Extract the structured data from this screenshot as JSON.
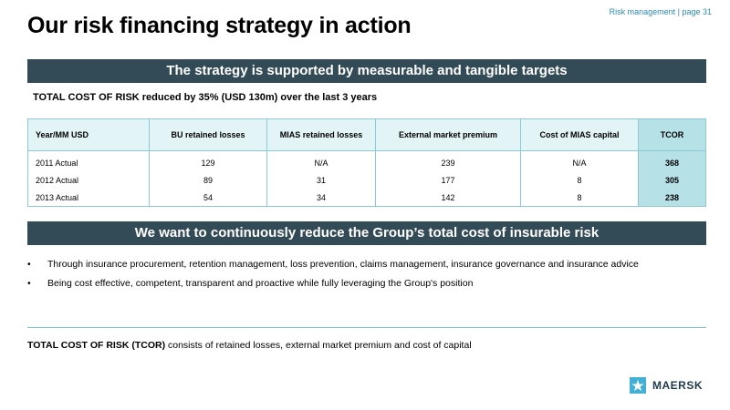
{
  "header": {
    "page_label": "Risk management | page 31",
    "title": "Our risk financing strategy in action"
  },
  "section1": {
    "banner": "The strategy is supported by measurable and tangible targets",
    "subhead": "TOTAL COST OF RISK reduced by 35% (USD 130m) over the last 3 years"
  },
  "table": {
    "headers": [
      "Year/MM USD",
      "BU retained losses",
      "MIAS retained losses",
      "External market premium",
      "Cost of  MIAS capital",
      "TCOR"
    ],
    "rows": [
      [
        "2011 Actual",
        "129",
        "N/A",
        "239",
        "N/A",
        "368"
      ],
      [
        "2012 Actual",
        "89",
        "31",
        "177",
        "8",
        "305"
      ],
      [
        "2013 Actual",
        "54",
        "34",
        "142",
        "8",
        "238"
      ]
    ]
  },
  "section2": {
    "banner": "We want to continuously reduce the Group’s total cost of insurable risk",
    "bullet_glyph": "•",
    "bullets": [
      "Through insurance procurement, retention management, loss prevention, claims management, insurance governance and insurance advice",
      "Being cost effective, competent, transparent and proactive while fully leveraging the Group's position"
    ]
  },
  "footnote": {
    "bold": "TOTAL COST OF RISK (TCOR)",
    "text": " consists of retained losses, external market premium and cost of capital"
  },
  "logo": {
    "text": "MAERSK",
    "icon": "star-icon",
    "color": "#42b0d5"
  }
}
